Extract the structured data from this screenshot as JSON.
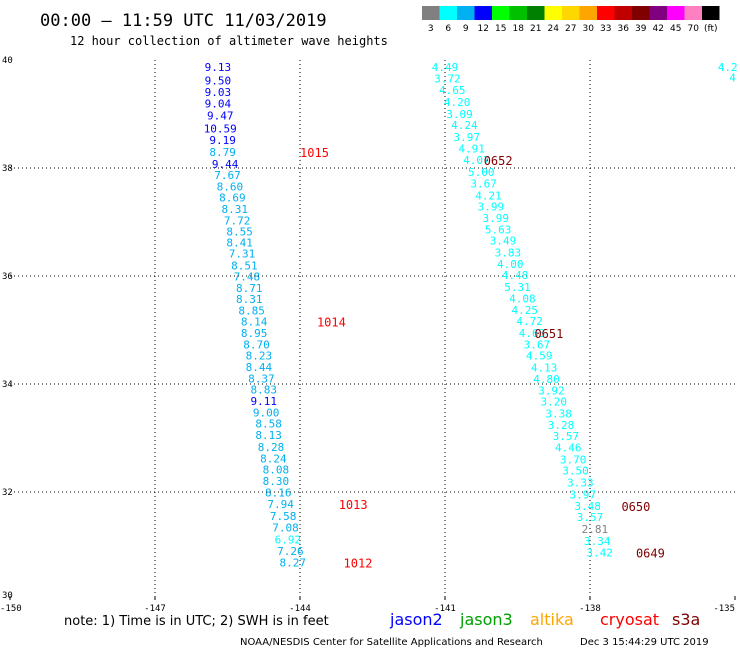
{
  "header": {
    "title": "00:00 – 11:59 UTC 11/03/2019",
    "subtitle": "12 hour collection of altimeter wave heights"
  },
  "color_scale": {
    "labels": [
      "3",
      "6",
      "9",
      "12",
      "15",
      "18",
      "21",
      "24",
      "27",
      "30",
      "33",
      "36",
      "39",
      "42",
      "45",
      "70",
      "(ft)"
    ],
    "colors": [
      "#808080",
      "#00ffff",
      "#00b0f0",
      "#0000ff",
      "#00ff00",
      "#00c000",
      "#008000",
      "#ffff00",
      "#ffd700",
      "#ffa500",
      "#ff0000",
      "#c00000",
      "#800000",
      "#800080",
      "#ff00ff",
      "#ff80c0",
      "#000000"
    ]
  },
  "footer": {
    "note": "note: 1) Time is in UTC; 2) SWH is in feet",
    "satellites": [
      {
        "name": "jason2",
        "color": "#0000ff"
      },
      {
        "name": "jason3",
        "color": "#00a000"
      },
      {
        "name": "altika",
        "color": "#ffa500"
      },
      {
        "name": "cryosat",
        "color": "#ff0000"
      },
      {
        "name": "s3a",
        "color": "#800000"
      }
    ],
    "credit": "NOAA/NESDIS Center for Satellite Applications and Research",
    "timestamp": "Dec  3 15:44:29 UTC 2019"
  },
  "chart_data": {
    "type": "scatter",
    "xlim": [
      -150,
      -135
    ],
    "ylim": [
      30,
      40
    ],
    "x_ticks": [
      "-150",
      "-147",
      "-144",
      "-141",
      "-138",
      "-135"
    ],
    "y_ticks": [
      "40",
      "38",
      "36",
      "34",
      "32",
      "30"
    ],
    "grid": true,
    "units": "ft",
    "tracks": [
      {
        "name": "track-1",
        "points": [
          {
            "lon": -145.7,
            "lat": 39.8,
            "value": "9.13",
            "color": "#0000ff"
          },
          {
            "lon": -145.7,
            "lat": 39.55,
            "value": "9.50",
            "color": "#0000ff"
          },
          {
            "lon": -145.7,
            "lat": 39.33,
            "value": "9.03",
            "color": "#0000ff"
          },
          {
            "lon": -145.7,
            "lat": 39.12,
            "value": "9.04",
            "color": "#0000ff"
          },
          {
            "lon": -145.65,
            "lat": 38.9,
            "value": "9.47",
            "color": "#0000ff"
          },
          {
            "lon": -145.65,
            "lat": 38.66,
            "value": "10.59",
            "color": "#0000ff"
          },
          {
            "lon": -145.6,
            "lat": 38.44,
            "value": "9.19",
            "color": "#0000ff"
          },
          {
            "lon": -145.6,
            "lat": 38.22,
            "value": "8.79",
            "color": "#00b0f0"
          },
          {
            "lon": -145.55,
            "lat": 38.0,
            "value": "9.44",
            "color": "#0000ff"
          },
          {
            "lon": -145.5,
            "lat": 37.8,
            "value": "7.67",
            "color": "#00b0f0"
          },
          {
            "lon": -145.45,
            "lat": 37.58,
            "value": "8.60",
            "color": "#00b0f0"
          },
          {
            "lon": -145.4,
            "lat": 37.38,
            "value": "8.69",
            "color": "#00b0f0"
          },
          {
            "lon": -145.35,
            "lat": 37.17,
            "value": "8.31",
            "color": "#00b0f0"
          },
          {
            "lon": -145.3,
            "lat": 36.95,
            "value": "7.72",
            "color": "#00b0f0"
          },
          {
            "lon": -145.25,
            "lat": 36.75,
            "value": "8.55",
            "color": "#00b0f0"
          },
          {
            "lon": -145.25,
            "lat": 36.55,
            "value": "8.41",
            "color": "#00b0f0"
          },
          {
            "lon": -145.2,
            "lat": 36.34,
            "value": "7.31",
            "color": "#00b0f0"
          },
          {
            "lon": -145.15,
            "lat": 36.12,
            "value": "8.51",
            "color": "#00b0f0"
          },
          {
            "lon": -145.1,
            "lat": 35.92,
            "value": "7.48",
            "color": "#00b0f0"
          },
          {
            "lon": -145.05,
            "lat": 35.7,
            "value": "8.71",
            "color": "#00b0f0"
          },
          {
            "lon": -145.05,
            "lat": 35.5,
            "value": "8.31",
            "color": "#00b0f0"
          },
          {
            "lon": -145.0,
            "lat": 35.29,
            "value": "8.85",
            "color": "#00b0f0"
          },
          {
            "lon": -144.95,
            "lat": 35.08,
            "value": "8.14",
            "color": "#00b0f0"
          },
          {
            "lon": -144.95,
            "lat": 34.87,
            "value": "8.95",
            "color": "#00b0f0"
          },
          {
            "lon": -144.9,
            "lat": 34.66,
            "value": "8.70",
            "color": "#00b0f0"
          },
          {
            "lon": -144.85,
            "lat": 34.45,
            "value": "8.23",
            "color": "#00b0f0"
          },
          {
            "lon": -144.85,
            "lat": 34.24,
            "value": "8.44",
            "color": "#00b0f0"
          },
          {
            "lon": -144.8,
            "lat": 34.03,
            "value": "8.37",
            "color": "#00b0f0"
          },
          {
            "lon": -144.75,
            "lat": 33.82,
            "value": "8.83",
            "color": "#00b0f0"
          },
          {
            "lon": -144.75,
            "lat": 33.61,
            "value": "9.11",
            "color": "#0000ff"
          },
          {
            "lon": -144.7,
            "lat": 33.4,
            "value": "9.00",
            "color": "#00b0f0"
          },
          {
            "lon": -144.65,
            "lat": 33.19,
            "value": "8.58",
            "color": "#00b0f0"
          },
          {
            "lon": -144.65,
            "lat": 32.98,
            "value": "8.13",
            "color": "#00b0f0"
          },
          {
            "lon": -144.6,
            "lat": 32.76,
            "value": "8.28",
            "color": "#00b0f0"
          },
          {
            "lon": -144.55,
            "lat": 32.55,
            "value": "8.24",
            "color": "#00b0f0"
          },
          {
            "lon": -144.5,
            "lat": 32.34,
            "value": "8.08",
            "color": "#00b0f0"
          },
          {
            "lon": -144.5,
            "lat": 32.13,
            "value": "8.30",
            "color": "#00b0f0"
          },
          {
            "lon": -144.45,
            "lat": 31.92,
            "value": "8.16",
            "color": "#00b0f0"
          },
          {
            "lon": -144.4,
            "lat": 31.7,
            "value": "7.94",
            "color": "#00b0f0"
          },
          {
            "lon": -144.35,
            "lat": 31.48,
            "value": "7.58",
            "color": "#00b0f0"
          },
          {
            "lon": -144.3,
            "lat": 31.27,
            "value": "7.08",
            "color": "#00b0f0"
          },
          {
            "lon": -144.25,
            "lat": 31.05,
            "value": "6.92",
            "color": "#00ffff"
          },
          {
            "lon": -144.2,
            "lat": 30.83,
            "value": "7.26",
            "color": "#00b0f0"
          },
          {
            "lon": -144.15,
            "lat": 30.62,
            "value": "8.27",
            "color": "#00b0f0"
          }
        ],
        "time_labels": [
          {
            "lon": -143.7,
            "lat": 38.22,
            "text": "1015",
            "color": "#ff0000"
          },
          {
            "lon": -143.35,
            "lat": 35.08,
            "text": "1014",
            "color": "#ff0000"
          },
          {
            "lon": -142.9,
            "lat": 31.7,
            "text": "1013",
            "color": "#ff0000"
          },
          {
            "lon": -142.8,
            "lat": 30.62,
            "text": "1012",
            "color": "#ff0000"
          }
        ]
      },
      {
        "name": "track-2",
        "points": [
          {
            "lon": -141.0,
            "lat": 39.8,
            "value": "4.49",
            "color": "#00ffff"
          },
          {
            "lon": -140.95,
            "lat": 39.58,
            "value": "3.72",
            "color": "#00ffff"
          },
          {
            "lon": -140.85,
            "lat": 39.37,
            "value": "4.65",
            "color": "#00ffff"
          },
          {
            "lon": -140.75,
            "lat": 39.15,
            "value": "4.20",
            "color": "#00ffff"
          },
          {
            "lon": -140.7,
            "lat": 38.93,
            "value": "3.09",
            "color": "#00ffff"
          },
          {
            "lon": -140.6,
            "lat": 38.72,
            "value": "4.24",
            "color": "#00ffff"
          },
          {
            "lon": -140.55,
            "lat": 38.5,
            "value": "3.97",
            "color": "#00ffff"
          },
          {
            "lon": -140.45,
            "lat": 38.29,
            "value": "4.91",
            "color": "#00ffff"
          },
          {
            "lon": -140.35,
            "lat": 38.07,
            "value": "4.07",
            "color": "#00ffff"
          },
          {
            "lon": -140.25,
            "lat": 37.85,
            "value": "5.00",
            "color": "#00ffff"
          },
          {
            "lon": -140.2,
            "lat": 37.64,
            "value": "3.67",
            "color": "#00ffff"
          },
          {
            "lon": -140.1,
            "lat": 37.42,
            "value": "4.21",
            "color": "#00ffff"
          },
          {
            "lon": -140.05,
            "lat": 37.21,
            "value": "3.99",
            "color": "#00ffff"
          },
          {
            "lon": -139.95,
            "lat": 37.0,
            "value": "3.99",
            "color": "#00ffff"
          },
          {
            "lon": -139.9,
            "lat": 36.79,
            "value": "5.63",
            "color": "#00ffff"
          },
          {
            "lon": -139.8,
            "lat": 36.58,
            "value": "3.49",
            "color": "#00ffff"
          },
          {
            "lon": -139.7,
            "lat": 36.36,
            "value": "3.83",
            "color": "#00ffff"
          },
          {
            "lon": -139.65,
            "lat": 36.15,
            "value": "4.00",
            "color": "#00ffff"
          },
          {
            "lon": -139.55,
            "lat": 35.94,
            "value": "4.48",
            "color": "#00ffff"
          },
          {
            "lon": -139.5,
            "lat": 35.72,
            "value": "5.31",
            "color": "#00ffff"
          },
          {
            "lon": -139.4,
            "lat": 35.51,
            "value": "4.08",
            "color": "#00ffff"
          },
          {
            "lon": -139.35,
            "lat": 35.3,
            "value": "4.25",
            "color": "#00ffff"
          },
          {
            "lon": -139.25,
            "lat": 35.09,
            "value": "4.72",
            "color": "#00ffff"
          },
          {
            "lon": -139.2,
            "lat": 34.87,
            "value": "4.63",
            "color": "#00ffff"
          },
          {
            "lon": -139.1,
            "lat": 34.66,
            "value": "3.67",
            "color": "#00ffff"
          },
          {
            "lon": -139.05,
            "lat": 34.45,
            "value": "4.59",
            "color": "#00ffff"
          },
          {
            "lon": -138.95,
            "lat": 34.23,
            "value": "4.13",
            "color": "#00ffff"
          },
          {
            "lon": -138.9,
            "lat": 34.02,
            "value": "4.80",
            "color": "#00ffff"
          },
          {
            "lon": -138.8,
            "lat": 33.81,
            "value": "3.92",
            "color": "#00ffff"
          },
          {
            "lon": -138.75,
            "lat": 33.6,
            "value": "3.20",
            "color": "#00ffff"
          },
          {
            "lon": -138.65,
            "lat": 33.38,
            "value": "3.38",
            "color": "#00ffff"
          },
          {
            "lon": -138.6,
            "lat": 33.17,
            "value": "3.28",
            "color": "#00ffff"
          },
          {
            "lon": -138.5,
            "lat": 32.96,
            "value": "3.57",
            "color": "#00ffff"
          },
          {
            "lon": -138.45,
            "lat": 32.75,
            "value": "4.46",
            "color": "#00ffff"
          },
          {
            "lon": -138.35,
            "lat": 32.53,
            "value": "3.70",
            "color": "#00ffff"
          },
          {
            "lon": -138.3,
            "lat": 32.32,
            "value": "3.50",
            "color": "#00ffff"
          },
          {
            "lon": -138.2,
            "lat": 32.1,
            "value": "3.33",
            "color": "#00ffff"
          },
          {
            "lon": -138.15,
            "lat": 31.88,
            "value": "3.97",
            "color": "#00ffff"
          },
          {
            "lon": -138.05,
            "lat": 31.67,
            "value": "3.48",
            "color": "#00ffff"
          },
          {
            "lon": -138.0,
            "lat": 31.46,
            "value": "3.57",
            "color": "#00ffff"
          },
          {
            "lon": -137.9,
            "lat": 31.24,
            "value": "2.81",
            "color": "#808080"
          },
          {
            "lon": -137.85,
            "lat": 31.02,
            "value": "3.34",
            "color": "#00ffff"
          },
          {
            "lon": -137.8,
            "lat": 30.81,
            "value": "3.42",
            "color": "#00ffff"
          }
        ],
        "time_labels": [
          {
            "lon": -139.9,
            "lat": 38.07,
            "text": "0652",
            "color": "#800000"
          },
          {
            "lon": -138.85,
            "lat": 34.87,
            "text": "0651",
            "color": "#800000"
          },
          {
            "lon": -137.05,
            "lat": 31.67,
            "text": "0650",
            "color": "#800000"
          },
          {
            "lon": -136.75,
            "lat": 30.81,
            "text": "0649",
            "color": "#800000"
          }
        ]
      },
      {
        "name": "track-3",
        "points": [
          {
            "lon": -135.15,
            "lat": 39.8,
            "value": "4.2",
            "color": "#00ffff"
          },
          {
            "lon": -135.05,
            "lat": 39.6,
            "value": "4",
            "color": "#00ffff"
          }
        ],
        "time_labels": []
      }
    ]
  }
}
